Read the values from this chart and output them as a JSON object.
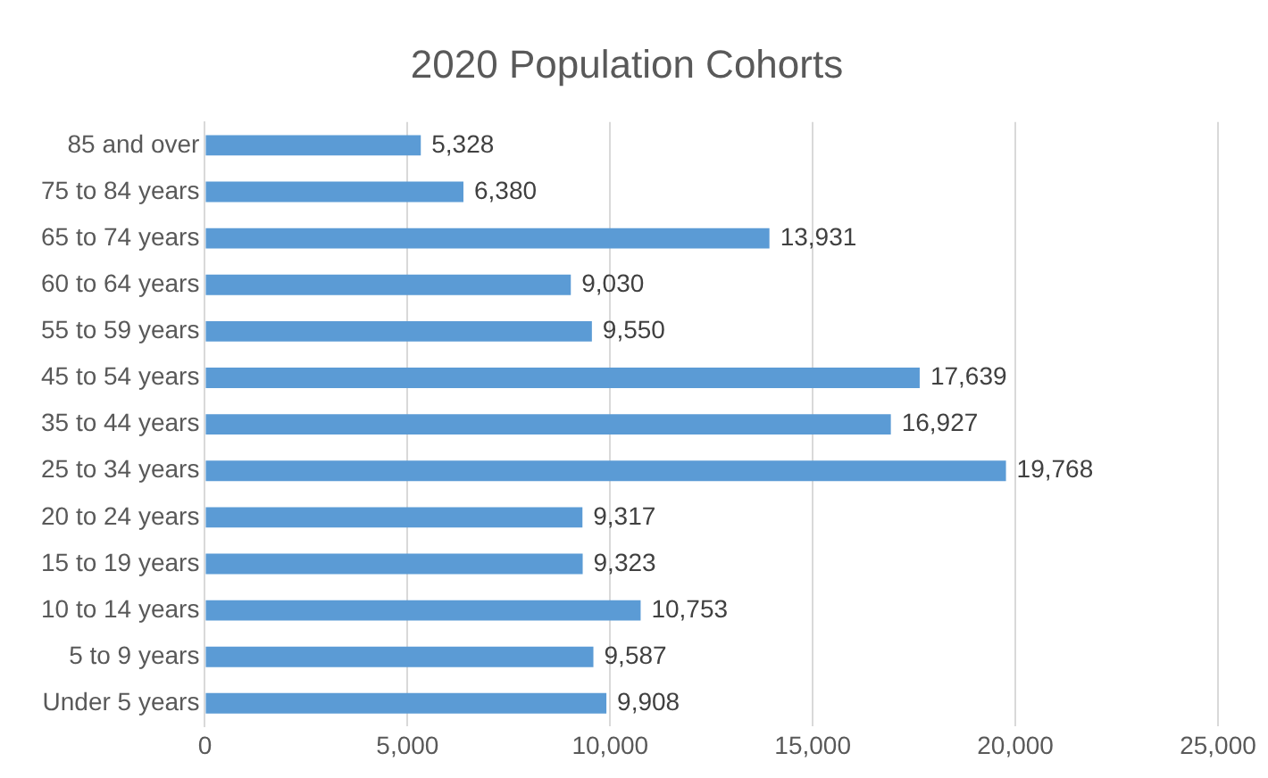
{
  "chart_data": {
    "type": "bar",
    "orientation": "horizontal",
    "title": "2020 Population Cohorts",
    "categories": [
      "85 and over",
      "75 to 84 years",
      "65 to 74 years",
      "60 to 64 years",
      "55 to 59 years",
      "45 to 54 years",
      "35 to 44 years",
      "25 to 34 years",
      "20 to 24 years",
      "15 to 19 years",
      "10 to 14 years",
      "5 to 9 years",
      "Under 5 years"
    ],
    "values": [
      5328,
      6380,
      13931,
      9030,
      9550,
      17639,
      16927,
      19768,
      9317,
      9323,
      10753,
      9587,
      9908
    ],
    "value_labels": [
      "5,328",
      "6,380",
      "13,931",
      "9,030",
      "9,550",
      "17,639",
      "16,927",
      "19,768",
      "9,317",
      "9,323",
      "10,753",
      "9,587",
      "9,908"
    ],
    "color": "#5b9bd5",
    "xlim": [
      0,
      25000
    ],
    "xticks": [
      0,
      {
        "value": 5000,
        "label": "5,000"
      },
      {
        "value": 10000,
        "label": "10,000"
      },
      {
        "value": 15000,
        "label": "15,000"
      },
      {
        "value": 20000,
        "label": "20,000"
      },
      {
        "value": 25000,
        "label": "25,000"
      }
    ],
    "grid": "x",
    "legend": false
  }
}
